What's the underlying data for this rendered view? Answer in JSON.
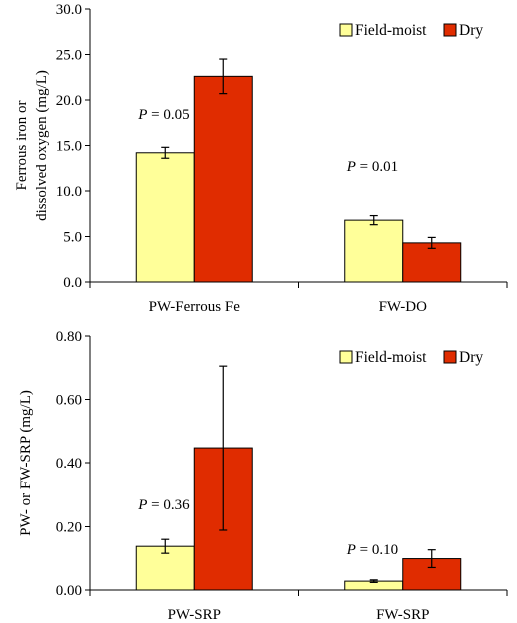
{
  "chart_data": [
    {
      "type": "bar",
      "ylabel_lines": [
        "Ferrous iron or",
        "dissolved oxygen (mg/L)"
      ],
      "ylim": [
        0,
        30
      ],
      "yticks": [
        "0.0",
        "5.0",
        "10.0",
        "15.0",
        "20.0",
        "25.0",
        "30.0"
      ],
      "categories": [
        "PW-Ferrous Fe",
        "FW-DO"
      ],
      "series": [
        {
          "name": "Field-moist",
          "color": "#FFFF99",
          "values": [
            14.2,
            6.8
          ],
          "errors": [
            0.6,
            0.5
          ]
        },
        {
          "name": "Dry",
          "color": "#E02C00",
          "values": [
            22.6,
            4.3
          ],
          "errors": [
            1.9,
            0.6
          ]
        }
      ],
      "annotations": [
        {
          "prefix": "P",
          "text": " = 0.05",
          "category": 0
        },
        {
          "prefix": "P",
          "text": " = 0.01",
          "category": 1
        }
      ],
      "legend": "top-right",
      "grid": false
    },
    {
      "type": "bar",
      "ylabel_lines": [
        "PW- or FW-SRP (mg/L)"
      ],
      "ylim": [
        0,
        0.8
      ],
      "yticks": [
        "0.00",
        "0.20",
        "0.40",
        "0.60",
        "0.80"
      ],
      "categories": [
        "PW-SRP",
        "FW-SRP"
      ],
      "series": [
        {
          "name": "Field-moist",
          "color": "#FFFF99",
          "values": [
            0.138,
            0.028
          ],
          "errors": [
            0.022,
            0.004
          ]
        },
        {
          "name": "Dry",
          "color": "#E02C00",
          "values": [
            0.447,
            0.099
          ],
          "errors": [
            0.258,
            0.028
          ]
        }
      ],
      "annotations": [
        {
          "prefix": "P",
          "text": " = 0.36",
          "category": 0
        },
        {
          "prefix": "P",
          "text": " = 0.10",
          "category": 1
        }
      ],
      "legend": "top-right",
      "grid": false
    }
  ]
}
